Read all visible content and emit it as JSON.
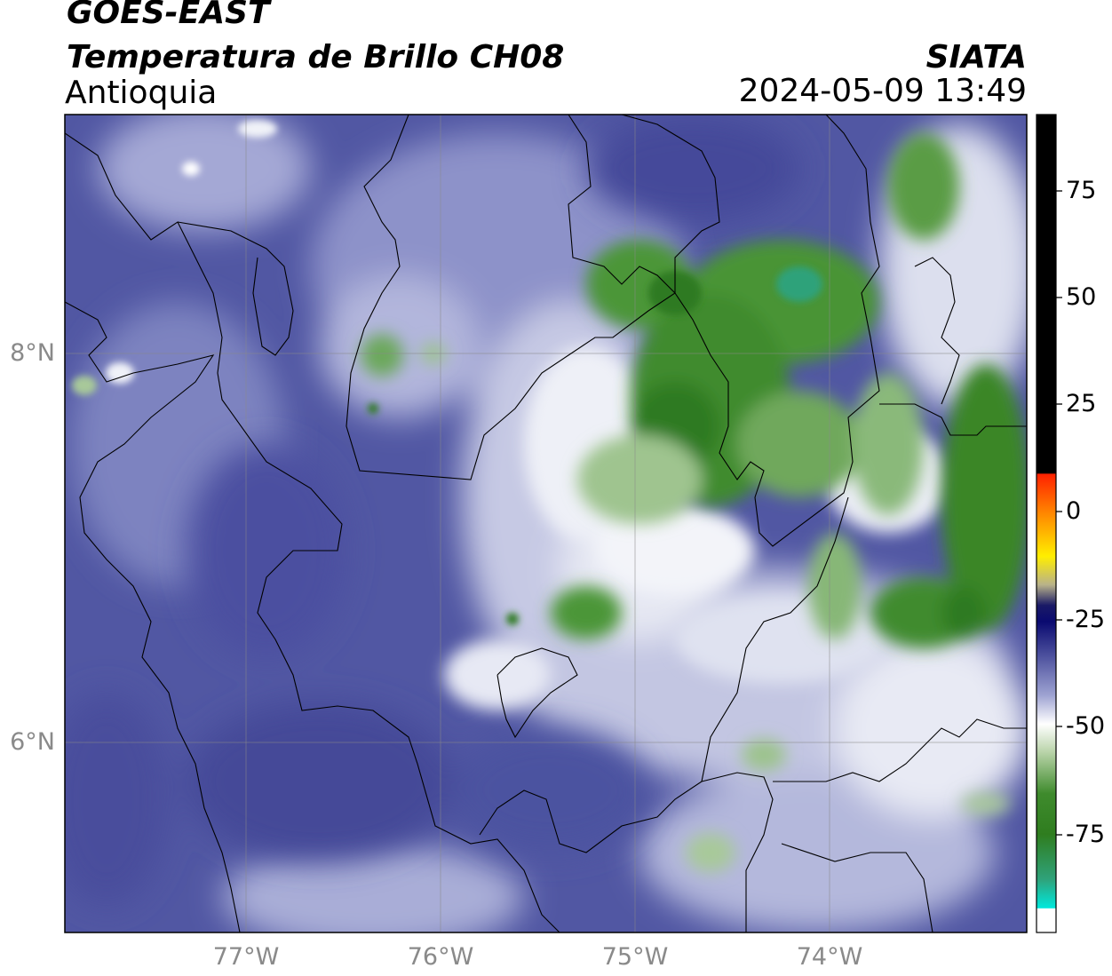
{
  "header": {
    "satellite": "GOES-EAST",
    "product": "Temperatura de Brillo CH08",
    "region": "Antioquia",
    "agency": "SIATA",
    "timestamp": "2024-05-09 13:49"
  },
  "map": {
    "lon_ticks": [
      "77°W",
      "76°W",
      "75°W",
      "74°W"
    ],
    "lat_ticks": [
      "8°N",
      "6°N"
    ],
    "lon_range": [
      -77.95,
      -73.0
    ],
    "lat_range": [
      5.0,
      9.2
    ],
    "gridlines": true,
    "field_colors": {
      "cold_cloud": "#4a4e9c",
      "mid": "#9aa0cf",
      "white": "#f4f5f9",
      "green": "#3f8b2d",
      "dark_green": "#2e7a22"
    }
  },
  "colorbar": {
    "ticks": [
      "75",
      "50",
      "25",
      "0",
      "-25",
      "-50",
      "-75"
    ],
    "range": [
      -93,
      92
    ],
    "colors": {
      "black": "#000000",
      "red": "#ff2a00",
      "orange": "#ff9a00",
      "yellow": "#ffee00",
      "navy": "#0a0a6e",
      "indigo": "#4a4e9c",
      "white": "#ffffff",
      "green": "#2f7d1f",
      "teal": "#2fa27a",
      "cyan": "#00e8dc"
    }
  }
}
